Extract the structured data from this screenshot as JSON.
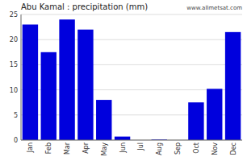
{
  "chart_data": {
    "type": "bar",
    "title": "Abu Kamal : precipitation (mm)",
    "categories": [
      "Jan",
      "Feb",
      "Mar",
      "Apr",
      "May",
      "Jun",
      "Jul",
      "Aug",
      "Sep",
      "Oct",
      "Nov",
      "Dec"
    ],
    "values": [
      23,
      17.5,
      24,
      22,
      8,
      0.7,
      0,
      0.1,
      0,
      7.5,
      10.2,
      21.5
    ],
    "color": "#0000DD",
    "ylim": [
      0,
      25
    ],
    "yticks": [
      0,
      5,
      10,
      15,
      20,
      25
    ],
    "grid": true,
    "annotations": [
      "www.allmetsat.com"
    ]
  }
}
